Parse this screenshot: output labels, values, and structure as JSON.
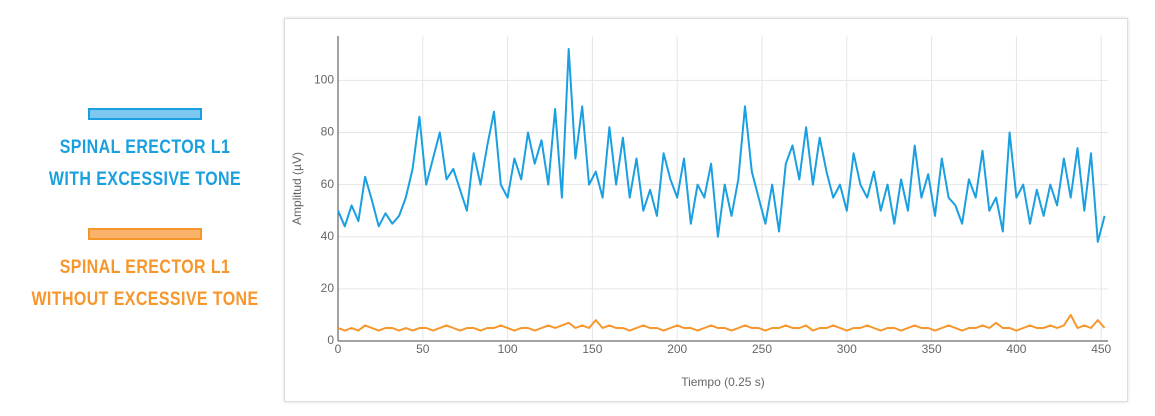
{
  "chart_data": {
    "type": "line",
    "xlabel": "Tiempo (0.25 s)",
    "ylabel": "Amplitud (µV)",
    "xlim": [
      0,
      454
    ],
    "ylim": [
      0,
      117
    ],
    "xticks": [
      0,
      50,
      100,
      150,
      200,
      250,
      300,
      350,
      400,
      450
    ],
    "yticks": [
      0,
      20,
      40,
      60,
      80,
      100
    ],
    "grid": true,
    "x": [
      0,
      4,
      8,
      12,
      16,
      20,
      24,
      28,
      32,
      36,
      40,
      44,
      48,
      52,
      56,
      60,
      64,
      68,
      72,
      76,
      80,
      84,
      88,
      92,
      96,
      100,
      104,
      108,
      112,
      116,
      120,
      124,
      128,
      132,
      136,
      140,
      144,
      148,
      152,
      156,
      160,
      164,
      168,
      172,
      176,
      180,
      184,
      188,
      192,
      196,
      200,
      204,
      208,
      212,
      216,
      220,
      224,
      228,
      232,
      236,
      240,
      244,
      248,
      252,
      256,
      260,
      264,
      268,
      272,
      276,
      280,
      284,
      288,
      292,
      296,
      300,
      304,
      308,
      312,
      316,
      320,
      324,
      328,
      332,
      336,
      340,
      344,
      348,
      352,
      356,
      360,
      364,
      368,
      372,
      376,
      380,
      384,
      388,
      392,
      396,
      400,
      404,
      408,
      412,
      416,
      420,
      424,
      428,
      432,
      436,
      440,
      444,
      448,
      452
    ],
    "series": [
      {
        "name": "SPINAL ERECTOR L1 WITH EXCESSIVE TONE",
        "color": "#1a9fe0",
        "values": [
          50,
          44,
          52,
          46,
          63,
          54,
          44,
          49,
          45,
          48,
          55,
          66,
          86,
          60,
          70,
          80,
          62,
          66,
          58,
          50,
          72,
          60,
          75,
          88,
          60,
          55,
          70,
          62,
          80,
          68,
          77,
          60,
          89,
          55,
          112,
          70,
          90,
          60,
          65,
          55,
          82,
          60,
          78,
          55,
          70,
          50,
          58,
          48,
          72,
          62,
          55,
          70,
          45,
          60,
          55,
          68,
          40,
          60,
          48,
          62,
          90,
          65,
          55,
          45,
          60,
          42,
          68,
          75,
          62,
          82,
          60,
          78,
          65,
          55,
          60,
          50,
          72,
          60,
          55,
          65,
          50,
          60,
          45,
          62,
          50,
          75,
          55,
          64,
          48,
          70,
          55,
          52,
          45,
          62,
          55,
          73,
          50,
          55,
          42,
          80,
          55,
          60,
          45,
          58,
          48,
          60,
          52,
          70,
          55,
          74,
          50,
          72,
          38,
          48
        ]
      },
      {
        "name": "SPINAL ERECTOR L1 WITHOUT EXCESSIVE TONE",
        "color": "#f7962b",
        "values": [
          5,
          4,
          5,
          4,
          6,
          5,
          4,
          5,
          5,
          4,
          5,
          4,
          5,
          5,
          4,
          5,
          6,
          5,
          4,
          5,
          5,
          4,
          5,
          5,
          6,
          5,
          4,
          5,
          5,
          4,
          5,
          6,
          5,
          6,
          7,
          5,
          6,
          5,
          8,
          5,
          6,
          5,
          5,
          4,
          5,
          6,
          5,
          5,
          4,
          5,
          6,
          5,
          5,
          4,
          5,
          6,
          5,
          5,
          4,
          5,
          6,
          5,
          5,
          4,
          5,
          5,
          6,
          5,
          5,
          6,
          4,
          5,
          5,
          6,
          5,
          4,
          5,
          5,
          6,
          5,
          4,
          5,
          5,
          4,
          5,
          6,
          5,
          5,
          4,
          5,
          6,
          5,
          4,
          5,
          5,
          6,
          5,
          7,
          5,
          5,
          4,
          5,
          6,
          5,
          5,
          6,
          5,
          6,
          10,
          5,
          6,
          5,
          8,
          5
        ]
      }
    ]
  }
}
